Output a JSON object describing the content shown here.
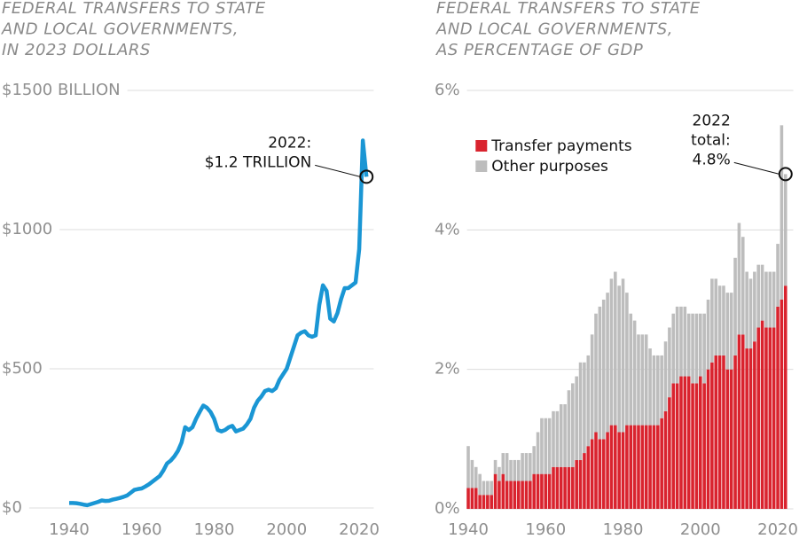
{
  "chart_data": [
    {
      "type": "line",
      "title": [
        "FEDERAL TRANSFERS TO STATE",
        "AND LOCAL GOVERNMENTS,",
        "IN 2023 DOLLARS"
      ],
      "x": [
        1940,
        1941,
        1942,
        1943,
        1944,
        1945,
        1946,
        1947,
        1948,
        1949,
        1950,
        1951,
        1952,
        1953,
        1954,
        1955,
        1956,
        1957,
        1958,
        1959,
        1960,
        1961,
        1962,
        1963,
        1964,
        1965,
        1966,
        1967,
        1968,
        1969,
        1970,
        1971,
        1972,
        1973,
        1974,
        1975,
        1976,
        1977,
        1978,
        1979,
        1980,
        1981,
        1982,
        1983,
        1984,
        1985,
        1986,
        1987,
        1988,
        1989,
        1990,
        1991,
        1992,
        1993,
        1994,
        1995,
        1996,
        1997,
        1998,
        1999,
        2000,
        2001,
        2002,
        2003,
        2004,
        2005,
        2006,
        2007,
        2008,
        2009,
        2010,
        2011,
        2012,
        2013,
        2014,
        2015,
        2016,
        2017,
        2018,
        2019,
        2020,
        2021,
        2022
      ],
      "series": [
        {
          "color": "#1a96d4",
          "values": [
            18,
            18,
            17,
            15,
            12,
            10,
            14,
            18,
            22,
            27,
            25,
            26,
            30,
            33,
            36,
            40,
            45,
            55,
            65,
            68,
            70,
            77,
            85,
            95,
            105,
            115,
            135,
            160,
            170,
            185,
            205,
            235,
            290,
            280,
            290,
            320,
            345,
            368,
            360,
            345,
            320,
            280,
            275,
            280,
            290,
            295,
            275,
            280,
            285,
            300,
            320,
            360,
            385,
            400,
            420,
            425,
            420,
            430,
            460,
            480,
            500,
            540,
            580,
            620,
            630,
            635,
            620,
            615,
            620,
            730,
            800,
            780,
            680,
            670,
            700,
            750,
            790,
            790,
            800,
            810,
            930,
            1320,
            1190
          ]
        }
      ],
      "xlim": [
        1938,
        2024
      ],
      "xticks": [
        1940,
        1960,
        1980,
        2000,
        2020
      ],
      "ylim": [
        0,
        1500
      ],
      "yticks": [
        {
          "value": 0,
          "label": "$0"
        },
        {
          "value": 500,
          "label": "$500"
        },
        {
          "value": 1000,
          "label": "$1000"
        },
        {
          "value": 1500,
          "label": "$1500 BILLION"
        }
      ],
      "grid": true,
      "annotation": {
        "x": 2022,
        "y": 1190,
        "text": [
          "2022:",
          "$1.2 TRILLION"
        ]
      }
    },
    {
      "type": "stacked-bar",
      "title": [
        "FEDERAL TRANSFERS TO STATE",
        "AND LOCAL GOVERNMENTS,",
        "AS PERCENTAGE OF GDP"
      ],
      "x": [
        1940,
        1941,
        1942,
        1943,
        1944,
        1945,
        1946,
        1947,
        1948,
        1949,
        1950,
        1951,
        1952,
        1953,
        1954,
        1955,
        1956,
        1957,
        1958,
        1959,
        1960,
        1961,
        1962,
        1963,
        1964,
        1965,
        1966,
        1967,
        1968,
        1969,
        1970,
        1971,
        1972,
        1973,
        1974,
        1975,
        1976,
        1977,
        1978,
        1979,
        1980,
        1981,
        1982,
        1983,
        1984,
        1985,
        1986,
        1987,
        1988,
        1989,
        1990,
        1991,
        1992,
        1993,
        1994,
        1995,
        1996,
        1997,
        1998,
        1999,
        2000,
        2001,
        2002,
        2003,
        2004,
        2005,
        2006,
        2007,
        2008,
        2009,
        2010,
        2011,
        2012,
        2013,
        2014,
        2015,
        2016,
        2017,
        2018,
        2019,
        2020,
        2021,
        2022
      ],
      "series": [
        {
          "name": "Transfer payments",
          "color": "#d9232e",
          "values": [
            0.3,
            0.3,
            0.3,
            0.2,
            0.2,
            0.2,
            0.2,
            0.5,
            0.4,
            0.5,
            0.4,
            0.4,
            0.4,
            0.4,
            0.4,
            0.4,
            0.4,
            0.5,
            0.5,
            0.5,
            0.5,
            0.5,
            0.6,
            0.6,
            0.6,
            0.6,
            0.6,
            0.6,
            0.7,
            0.7,
            0.8,
            0.9,
            1.0,
            1.1,
            1.0,
            1.0,
            1.1,
            1.2,
            1.2,
            1.1,
            1.1,
            1.2,
            1.2,
            1.2,
            1.2,
            1.2,
            1.2,
            1.2,
            1.2,
            1.2,
            1.3,
            1.4,
            1.6,
            1.8,
            1.8,
            1.9,
            1.9,
            1.9,
            1.8,
            1.8,
            1.9,
            1.8,
            2.0,
            2.1,
            2.2,
            2.2,
            2.2,
            2.0,
            2.0,
            2.2,
            2.5,
            2.5,
            2.3,
            2.3,
            2.4,
            2.6,
            2.7,
            2.6,
            2.6,
            2.6,
            2.9,
            3.0,
            3.2
          ]
        },
        {
          "name": "Other purposes",
          "color": "#bdbdbd",
          "values": [
            0.6,
            0.4,
            0.3,
            0.3,
            0.2,
            0.2,
            0.2,
            0.2,
            0.2,
            0.3,
            0.4,
            0.3,
            0.3,
            0.3,
            0.4,
            0.4,
            0.4,
            0.4,
            0.6,
            0.8,
            0.8,
            0.8,
            0.8,
            0.8,
            0.9,
            0.9,
            1.1,
            1.2,
            1.2,
            1.4,
            1.3,
            1.3,
            1.5,
            1.7,
            1.9,
            2.0,
            2.0,
            2.1,
            2.2,
            2.1,
            2.2,
            1.9,
            1.6,
            1.5,
            1.3,
            1.3,
            1.3,
            1.1,
            1.0,
            1.0,
            0.9,
            1.0,
            1.0,
            1.0,
            1.1,
            1.0,
            1.0,
            0.9,
            1.0,
            1.0,
            0.9,
            1.0,
            1.0,
            1.2,
            1.1,
            1.0,
            1.0,
            1.1,
            1.1,
            1.4,
            1.6,
            1.4,
            1.1,
            1.0,
            1.0,
            0.9,
            0.8,
            0.8,
            0.8,
            0.8,
            0.9,
            2.5,
            1.6
          ]
        }
      ],
      "xlim": [
        1938,
        2024
      ],
      "xticks": [
        1940,
        1960,
        1980,
        2000,
        2020
      ],
      "ylim": [
        0,
        6
      ],
      "yticks": [
        {
          "value": 0,
          "label": "0%"
        },
        {
          "value": 2,
          "label": "2%"
        },
        {
          "value": 4,
          "label": "4%"
        },
        {
          "value": 6,
          "label": "6%"
        }
      ],
      "grid": true,
      "legend": "upper-left",
      "annotation": {
        "x": 2022,
        "y": 4.8,
        "text": [
          "2022",
          "total:",
          "4.8%"
        ]
      }
    }
  ]
}
